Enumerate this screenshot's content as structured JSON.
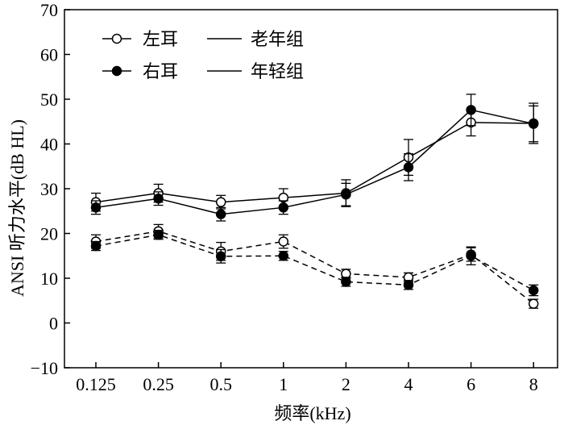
{
  "chart_data": {
    "type": "line",
    "title": "",
    "xlabel": "频率(kHz)",
    "ylabel": "ANSI 听力水平(dB HL)",
    "categories": [
      "0.125",
      "0.25",
      "0.5",
      "1",
      "2",
      "4",
      "6",
      "8"
    ],
    "ylim": [
      -10,
      70
    ],
    "yticks": [
      "−10",
      "0",
      "10",
      "20",
      "30",
      "40",
      "50",
      "60",
      "70"
    ],
    "legend": {
      "position": "top-left",
      "entries": [
        {
          "label": "左耳",
          "marker": "open-circle"
        },
        {
          "label": "右耳",
          "marker": "filled-circle"
        },
        {
          "label": "老年组",
          "line": "solid"
        },
        {
          "label": "年轻组",
          "line": "solid"
        }
      ]
    },
    "series": [
      {
        "name": "老年组 左耳",
        "ear": "left",
        "group": "elderly",
        "line": "solid",
        "marker": "open",
        "values": [
          27,
          29,
          27,
          28,
          29,
          37,
          44.8,
          44.6
        ],
        "errors": [
          2,
          2,
          1.5,
          2,
          3,
          4,
          3,
          4.5
        ]
      },
      {
        "name": "老年组 右耳",
        "ear": "right",
        "group": "elderly",
        "line": "solid",
        "marker": "filled",
        "values": [
          25.8,
          27.8,
          24.3,
          25.8,
          28.7,
          34.8,
          47.6,
          44.5
        ],
        "errors": [
          1.5,
          1.5,
          1.5,
          1.5,
          2.5,
          3,
          3.5,
          4
        ]
      },
      {
        "name": "年轻组 左耳",
        "ear": "left",
        "group": "young",
        "line": "dashed",
        "marker": "open",
        "values": [
          18.2,
          20.5,
          16,
          18.2,
          11,
          10.2,
          15.3,
          4.3
        ],
        "errors": [
          1.5,
          1.5,
          2,
          1.5,
          1,
          1,
          1.5,
          1
        ]
      },
      {
        "name": "年轻组 右耳",
        "ear": "right",
        "group": "young",
        "line": "dashed",
        "marker": "filled",
        "values": [
          17.2,
          19.7,
          14.9,
          15,
          9.2,
          8.5,
          15,
          7.3
        ],
        "errors": [
          1,
          1,
          1.5,
          1,
          1,
          1,
          2,
          1.2
        ]
      }
    ]
  }
}
